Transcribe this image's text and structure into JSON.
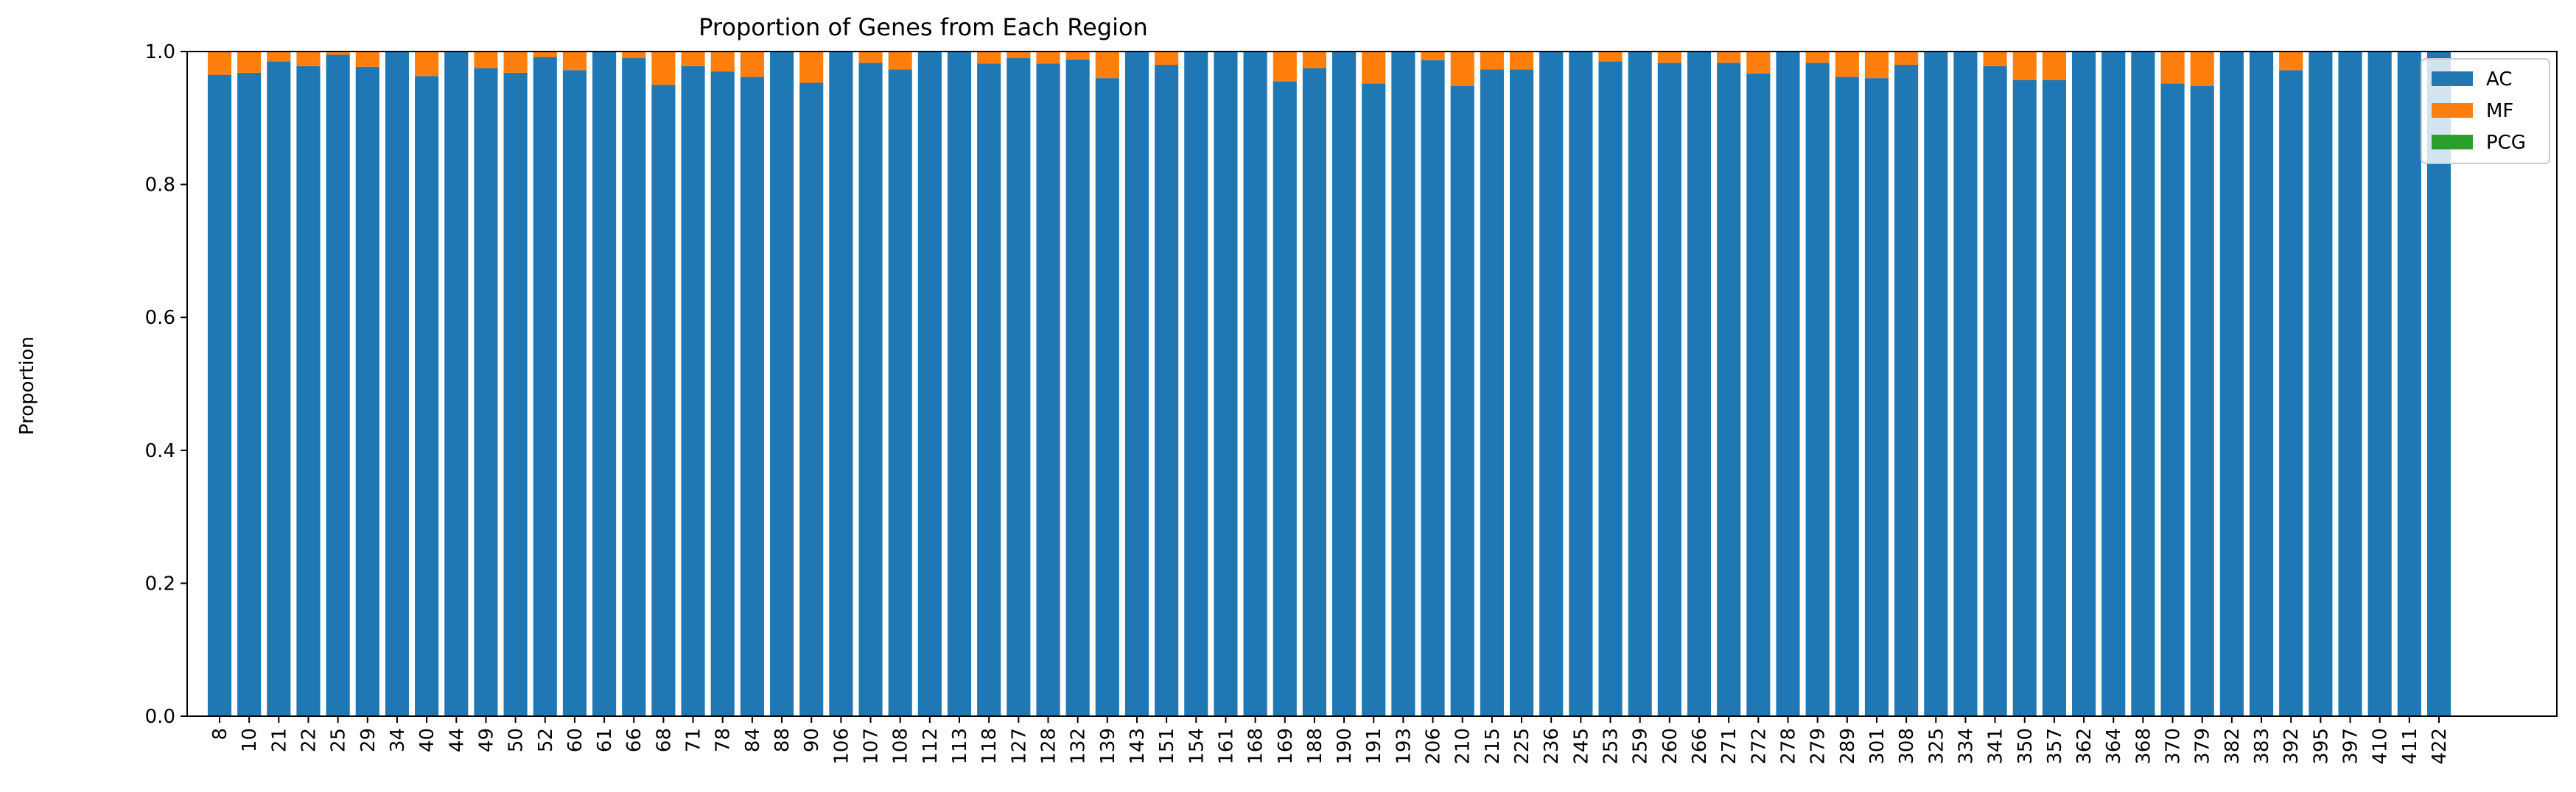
{
  "chart_data": {
    "type": "bar",
    "stacked": true,
    "title": "Proportion of Genes from Each Region",
    "xlabel": "",
    "ylabel": "Proportion",
    "ylim": [
      0,
      1
    ],
    "yticks": [
      "0.0",
      "0.2",
      "0.4",
      "0.6",
      "0.8",
      "1.0"
    ],
    "grid": false,
    "legend_position": "top-right",
    "categories": [
      "8",
      "10",
      "21",
      "22",
      "25",
      "29",
      "34",
      "40",
      "44",
      "49",
      "50",
      "52",
      "60",
      "61",
      "66",
      "68",
      "71",
      "78",
      "84",
      "88",
      "90",
      "106",
      "107",
      "108",
      "112",
      "113",
      "118",
      "127",
      "128",
      "132",
      "139",
      "143",
      "151",
      "154",
      "161",
      "168",
      "169",
      "188",
      "190",
      "191",
      "193",
      "206",
      "210",
      "215",
      "225",
      "236",
      "245",
      "253",
      "259",
      "260",
      "266",
      "271",
      "272",
      "278",
      "279",
      "289",
      "301",
      "308",
      "325",
      "334",
      "341",
      "350",
      "357",
      "362",
      "364",
      "368",
      "370",
      "379",
      "382",
      "383",
      "392",
      "395",
      "397",
      "410",
      "411",
      "422"
    ],
    "series": [
      {
        "name": "AC",
        "color": "#1f77b4",
        "values": [
          0.965,
          0.968,
          0.985,
          0.978,
          0.995,
          0.977,
          1.0,
          0.963,
          1.0,
          0.975,
          0.968,
          0.992,
          0.972,
          1.0,
          0.99,
          0.95,
          0.978,
          0.97,
          0.962,
          1.0,
          0.953,
          1.0,
          0.983,
          0.973,
          1.0,
          1.0,
          0.982,
          0.99,
          0.982,
          0.988,
          0.96,
          1.0,
          0.98,
          1.0,
          1.0,
          1.0,
          0.955,
          0.975,
          1.0,
          0.952,
          1.0,
          0.987,
          0.948,
          0.973,
          0.973,
          1.0,
          1.0,
          0.985,
          1.0,
          0.983,
          1.0,
          0.983,
          0.967,
          1.0,
          0.983,
          0.962,
          0.96,
          0.98,
          1.0,
          1.0,
          0.978,
          0.957,
          0.957,
          1.0,
          1.0,
          1.0,
          0.952,
          0.948,
          1.0,
          1.0,
          0.972,
          1.0,
          1.0,
          1.0,
          1.0,
          1.0
        ]
      },
      {
        "name": "MF",
        "color": "#ff7f0e",
        "values": [
          0.035,
          0.032,
          0.015,
          0.022,
          0.005,
          0.023,
          0.0,
          0.037,
          0.0,
          0.025,
          0.032,
          0.008,
          0.028,
          0.0,
          0.01,
          0.05,
          0.022,
          0.03,
          0.038,
          0.0,
          0.047,
          0.0,
          0.017,
          0.027,
          0.0,
          0.0,
          0.018,
          0.01,
          0.018,
          0.012,
          0.04,
          0.0,
          0.02,
          0.0,
          0.0,
          0.0,
          0.045,
          0.025,
          0.0,
          0.048,
          0.0,
          0.013,
          0.052,
          0.027,
          0.027,
          0.0,
          0.0,
          0.015,
          0.0,
          0.017,
          0.0,
          0.017,
          0.033,
          0.0,
          0.017,
          0.038,
          0.04,
          0.02,
          0.0,
          0.0,
          0.022,
          0.043,
          0.043,
          0.0,
          0.0,
          0.0,
          0.048,
          0.052,
          0.0,
          0.0,
          0.028,
          0.0,
          0.0,
          0.0,
          0.0,
          0.0
        ]
      },
      {
        "name": "PCG",
        "color": "#2ca02c",
        "values": [
          0,
          0,
          0,
          0,
          0,
          0,
          0,
          0,
          0,
          0,
          0,
          0,
          0,
          0,
          0,
          0,
          0,
          0,
          0,
          0,
          0,
          0,
          0,
          0,
          0,
          0,
          0,
          0,
          0,
          0,
          0,
          0,
          0,
          0,
          0,
          0,
          0,
          0,
          0,
          0,
          0,
          0,
          0,
          0,
          0,
          0,
          0,
          0,
          0,
          0,
          0,
          0,
          0,
          0,
          0,
          0,
          0,
          0,
          0,
          0,
          0,
          0,
          0,
          0,
          0,
          0,
          0,
          0,
          0,
          0,
          0,
          0,
          0,
          0,
          0,
          0
        ]
      }
    ]
  }
}
